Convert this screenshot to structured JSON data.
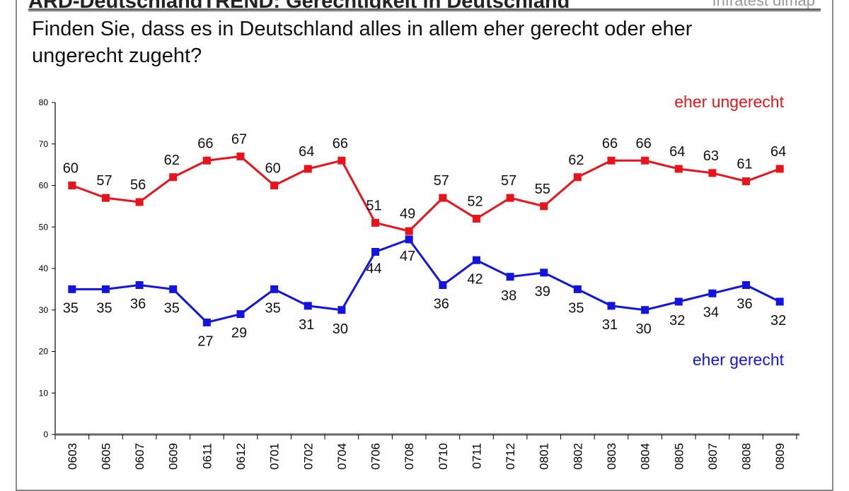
{
  "header": {
    "title": "ARD-DeutschlandTREND: Gerechtigkeit in Deutschland",
    "brand": "Infratest dimap",
    "question": "Finden Sie, dass es in Deutschland alles in allem eher gerecht oder eher ungerecht zugeht?"
  },
  "chart_data": {
    "type": "line",
    "title": "",
    "xlabel": "",
    "ylabel": "",
    "ylim": [
      0,
      80
    ],
    "yticks": [
      0,
      10,
      20,
      30,
      40,
      50,
      60,
      70,
      80
    ],
    "grid": false,
    "categories": [
      "0603",
      "0605",
      "0607",
      "0609",
      "0611",
      "0612",
      "0701",
      "0702",
      "0704",
      "0706",
      "0708",
      "0710",
      "0711",
      "0712",
      "0801",
      "0802",
      "0803",
      "0804",
      "0805",
      "0807",
      "0808",
      "0809"
    ],
    "series": [
      {
        "name": "eher ungerecht",
        "color": "#e8141c",
        "values": [
          60,
          57,
          56,
          62,
          66,
          67,
          60,
          64,
          66,
          51,
          49,
          57,
          52,
          57,
          55,
          62,
          66,
          66,
          64,
          63,
          61,
          64
        ]
      },
      {
        "name": "eher gerecht",
        "color": "#1414e0",
        "values": [
          35,
          35,
          36,
          35,
          27,
          29,
          35,
          31,
          30,
          44,
          47,
          36,
          42,
          38,
          39,
          35,
          31,
          30,
          32,
          34,
          36,
          32
        ]
      }
    ],
    "legend": "inline-right"
  }
}
